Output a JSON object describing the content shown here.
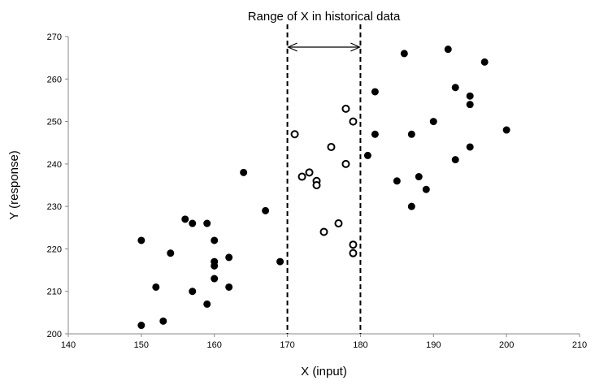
{
  "chart_data": {
    "type": "scatter",
    "title": "",
    "xlabel": "X (input)",
    "ylabel": "Y (response)",
    "xlim": [
      140,
      210
    ],
    "ylim": [
      200,
      270
    ],
    "xticks": [
      140,
      150,
      160,
      170,
      180,
      190,
      200,
      210
    ],
    "yticks": [
      200,
      210,
      220,
      230,
      240,
      250,
      260,
      270
    ],
    "grid": false,
    "annotation": {
      "text": "Range of X in historical data",
      "x_range": [
        170,
        180
      ]
    },
    "series": [
      {
        "marker": "filled",
        "color": "#000000",
        "points": [
          [
            150,
            222
          ],
          [
            150,
            202
          ],
          [
            152,
            211
          ],
          [
            153,
            203
          ],
          [
            154,
            219
          ],
          [
            156,
            227
          ],
          [
            157,
            226
          ],
          [
            157,
            210
          ],
          [
            159,
            226
          ],
          [
            159,
            207
          ],
          [
            160,
            222
          ],
          [
            160,
            217
          ],
          [
            160,
            216
          ],
          [
            160,
            213
          ],
          [
            162,
            218
          ],
          [
            162,
            211
          ],
          [
            164,
            238
          ],
          [
            167,
            229
          ],
          [
            169,
            217
          ],
          [
            181,
            242
          ],
          [
            182,
            257
          ],
          [
            182,
            247
          ],
          [
            185,
            236
          ],
          [
            186,
            266
          ],
          [
            187,
            247
          ],
          [
            187,
            230
          ],
          [
            188,
            237
          ],
          [
            189,
            234
          ],
          [
            190,
            250
          ],
          [
            192,
            267
          ],
          [
            193,
            258
          ],
          [
            193,
            241
          ],
          [
            195,
            256
          ],
          [
            195,
            254
          ],
          [
            195,
            244
          ],
          [
            197,
            264
          ],
          [
            200,
            248
          ]
        ]
      },
      {
        "marker": "open",
        "color": "#000000",
        "points": [
          [
            171,
            247
          ],
          [
            172,
            237
          ],
          [
            173,
            238
          ],
          [
            174,
            236
          ],
          [
            174,
            235
          ],
          [
            175,
            224
          ],
          [
            176,
            244
          ],
          [
            177,
            226
          ],
          [
            178,
            253
          ],
          [
            178,
            240
          ],
          [
            179,
            250
          ],
          [
            179,
            221
          ],
          [
            179,
            219
          ]
        ]
      }
    ]
  }
}
